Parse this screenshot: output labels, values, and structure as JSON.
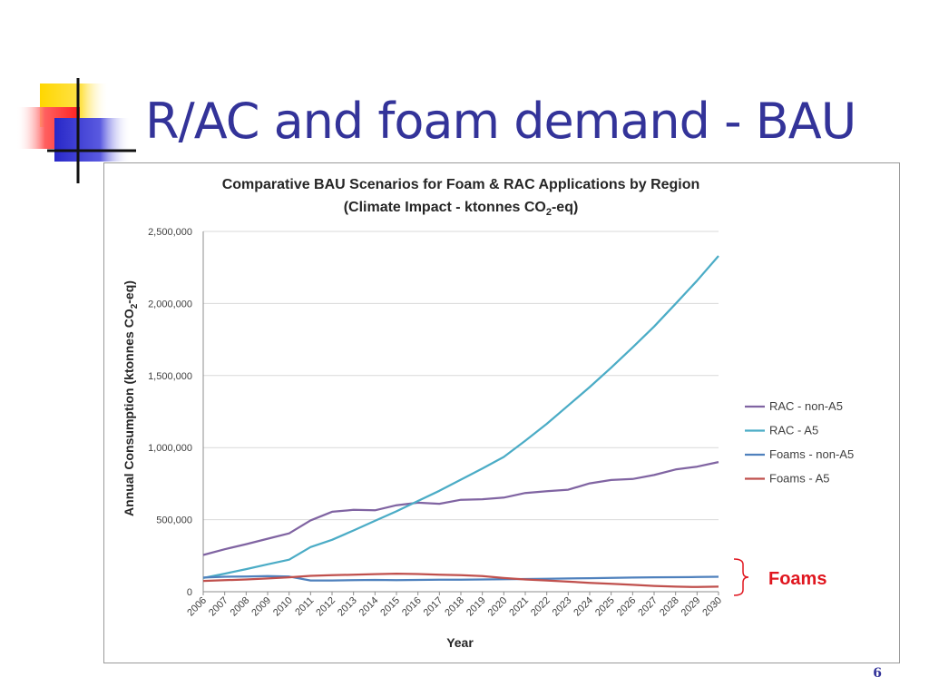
{
  "slide": {
    "title": "R/AC and foam demand - BAU",
    "page_number": "6"
  },
  "colors": {
    "title": "#333399",
    "deco_yellow": "#ffd700",
    "deco_red": "#ff4040",
    "deco_blue": "#3333cc"
  },
  "chart_data": {
    "type": "line",
    "title_line1": "Comparative BAU Scenarios for Foam & RAC Applications by Region",
    "title_line2_pre": "(Climate Impact - ktonnes CO",
    "title_line2_sub": "2",
    "title_line2_post": "-eq)",
    "ylabel_pre": "Annual Consumption (ktonnes CO",
    "ylabel_sub": "2",
    "ylabel_post": "-eq)",
    "xlabel": "Year",
    "ylim": [
      0,
      2500000
    ],
    "yticks": [
      0,
      500000,
      1000000,
      1500000,
      2000000,
      2500000
    ],
    "ytick_labels": [
      "0",
      "500,000",
      "1,000,000",
      "1,500,000",
      "2,000,000",
      "2,500,000"
    ],
    "grid": true,
    "legend_position": "right",
    "x": [
      "2006",
      "2007",
      "2008",
      "2009",
      "2010",
      "2011",
      "2012",
      "2013",
      "2014",
      "2015",
      "2016",
      "2017",
      "2018",
      "2019",
      "2020",
      "2021",
      "2022",
      "2023",
      "2024",
      "2025",
      "2026",
      "2027",
      "2028",
      "2029",
      "2030"
    ],
    "series": [
      {
        "name": "RAC - non-A5",
        "color": "#8064a2",
        "values": [
          255000,
          295000,
          330000,
          368000,
          405000,
          495000,
          555000,
          568000,
          565000,
          600000,
          618000,
          610000,
          638000,
          642000,
          653000,
          685000,
          698000,
          708000,
          752000,
          775000,
          782000,
          810000,
          848000,
          868000,
          900000
        ]
      },
      {
        "name": "RAC - A5",
        "color": "#4bacc6",
        "values": [
          95000,
          125000,
          157000,
          190000,
          222000,
          310000,
          360000,
          425000,
          492000,
          558000,
          630000,
          700000,
          778000,
          855000,
          935000,
          1048000,
          1165000,
          1292000,
          1420000,
          1555000,
          1695000,
          1840000,
          1998000,
          2158000,
          2330000
        ]
      },
      {
        "name": "Foams - non-A5",
        "color": "#4f81bd",
        "values": [
          98000,
          104000,
          106000,
          108000,
          105000,
          78000,
          78000,
          80000,
          82000,
          80000,
          82000,
          83000,
          84000,
          85000,
          86000,
          88000,
          90000,
          92000,
          94000,
          96000,
          98000,
          100000,
          101000,
          102000,
          104000
        ]
      },
      {
        "name": "Foams - A5",
        "color": "#c0504d",
        "values": [
          75000,
          80000,
          85000,
          92000,
          100000,
          110000,
          115000,
          118000,
          122000,
          125000,
          123000,
          118000,
          115000,
          108000,
          95000,
          85000,
          78000,
          70000,
          62000,
          55000,
          48000,
          40000,
          35000,
          33000,
          35000
        ]
      }
    ],
    "annotation": {
      "label": "Foams",
      "color": "#e0161f"
    }
  }
}
